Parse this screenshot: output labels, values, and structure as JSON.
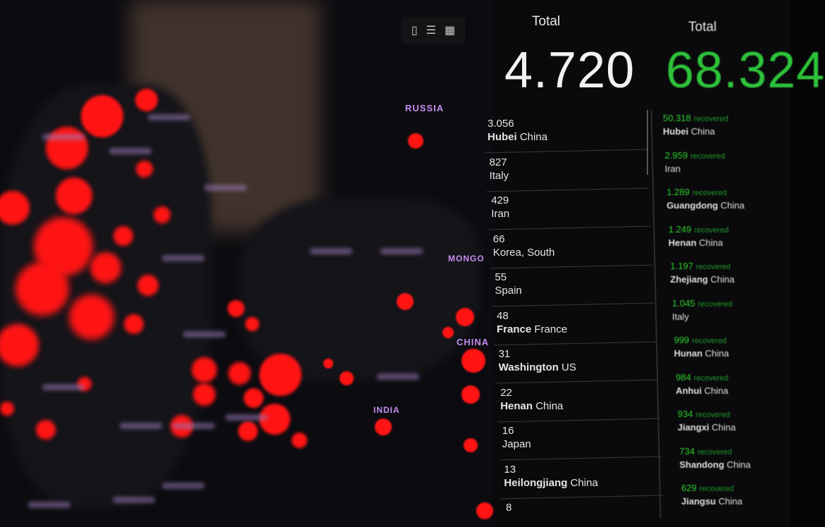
{
  "map": {
    "labels": [
      "RUSSIA",
      "MONGO",
      "CHINA",
      "INDIA"
    ],
    "marker_color": "#ff1414"
  },
  "toolbar": {
    "icons": [
      "bookmark-icon",
      "list-icon",
      "qr-icon"
    ]
  },
  "confirmed": {
    "label": "Total",
    "value": "4.720",
    "items": [
      {
        "num": "3.056",
        "bold": "Hubei",
        "rest": " China"
      },
      {
        "num": "827",
        "bold": "",
        "rest": "Italy"
      },
      {
        "num": "429",
        "bold": "",
        "rest": "Iran"
      },
      {
        "num": "66",
        "bold": "",
        "rest": "Korea, South"
      },
      {
        "num": "55",
        "bold": "",
        "rest": "Spain"
      },
      {
        "num": "48",
        "bold": "France",
        "rest": " France"
      },
      {
        "num": "31",
        "bold": "Washington",
        "rest": " US"
      },
      {
        "num": "22",
        "bold": "Henan",
        "rest": " China"
      },
      {
        "num": "16",
        "bold": "",
        "rest": "Japan"
      },
      {
        "num": "13",
        "bold": "Heilongjiang",
        "rest": " China"
      },
      {
        "num": "8",
        "bold": "",
        "rest": ""
      }
    ]
  },
  "recovered": {
    "label": "Total",
    "value": "68.324",
    "color": "#2ec43a",
    "suffix": "recovered",
    "items": [
      {
        "num": "50.318",
        "bold": "Hubei",
        "rest": " China"
      },
      {
        "num": "2.959",
        "bold": "",
        "rest": "Iran"
      },
      {
        "num": "1.289",
        "bold": "Guangdong",
        "rest": " China"
      },
      {
        "num": "1.249",
        "bold": "Henan",
        "rest": " China"
      },
      {
        "num": "1.197",
        "bold": "Zhejiang",
        "rest": " China"
      },
      {
        "num": "1.045",
        "bold": "",
        "rest": "Italy"
      },
      {
        "num": "999",
        "bold": "Hunan",
        "rest": " China"
      },
      {
        "num": "984",
        "bold": "Anhui",
        "rest": " China"
      },
      {
        "num": "934",
        "bold": "Jiangxi",
        "rest": " China"
      },
      {
        "num": "734",
        "bold": "Shandong",
        "rest": " China"
      },
      {
        "num": "629",
        "bold": "Jiangsu",
        "rest": " China"
      }
    ]
  }
}
